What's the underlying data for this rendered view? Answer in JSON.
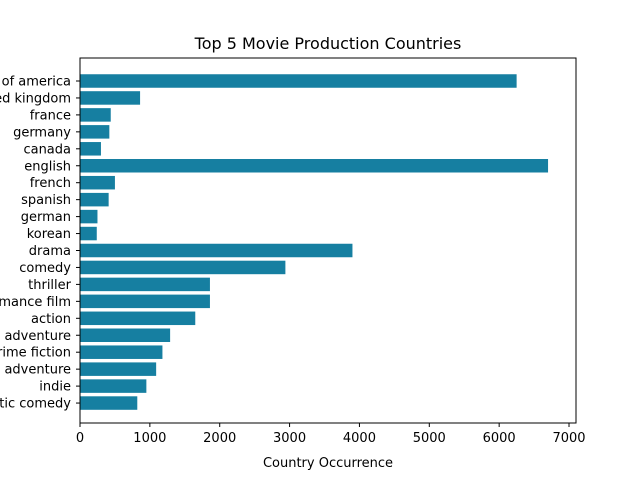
{
  "chart_data": {
    "type": "bar",
    "orientation": "horizontal",
    "title": "Top 5 Movie Production Countries",
    "xlabel": "Country Occurrence",
    "ylabel": "",
    "xlim": [
      0,
      7100
    ],
    "xticks": [
      0,
      1000,
      2000,
      3000,
      4000,
      5000,
      6000,
      7000
    ],
    "bar_color": "#167fa1",
    "categories": [
      "united states of america",
      "united kingdom",
      "france",
      "germany",
      "canada",
      "english",
      "french",
      "spanish",
      "german",
      "korean",
      "drama",
      "comedy",
      "thriller",
      "romance film",
      "action",
      "adventure",
      "crime fiction",
      "adventure",
      "indie",
      "romantic comedy"
    ],
    "values": [
      6250,
      860,
      440,
      420,
      300,
      6700,
      500,
      410,
      250,
      240,
      3900,
      2940,
      1860,
      1860,
      1650,
      1290,
      1180,
      1090,
      950,
      820
    ],
    "grid": false
  }
}
